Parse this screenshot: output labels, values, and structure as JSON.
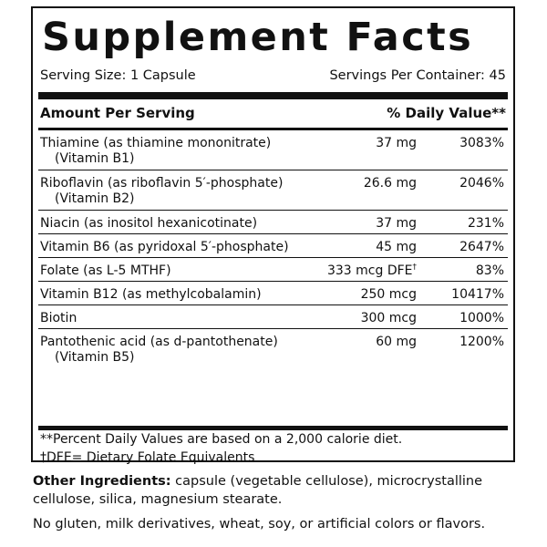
{
  "panel": {
    "title": "Supplement Facts",
    "serving_size": "Serving Size: 1 Capsule",
    "servings_per_container": "Servings Per Container: 45",
    "amount_header": "Amount Per Serving",
    "dv_header": "% Daily Value**"
  },
  "nutrients": [
    {
      "name": "Thiamine (as thiamine mononitrate)",
      "sub": "(Vitamin B1)",
      "amount": "37 mg",
      "dv": "3083%"
    },
    {
      "name": "Riboflavin (as riboflavin 5′-phosphate)",
      "sub": "(Vitamin B2)",
      "amount": "26.6 mg",
      "dv": "2046%"
    },
    {
      "name": "Niacin (as inositol hexanicotinate)",
      "sub": "",
      "amount": "37 mg",
      "dv": "231%"
    },
    {
      "name": "Vitamin B6 (as pyridoxal 5′-phosphate)",
      "sub": "",
      "amount": "45 mg",
      "dv": "2647%"
    },
    {
      "name": "Folate (as L-5 MTHF)",
      "sub": "",
      "amount": "333 mcg DFE",
      "amount_mark": "†",
      "dv": "83%"
    },
    {
      "name": "Vitamin B12 (as methylcobalamin)",
      "sub": "",
      "amount": "250 mcg",
      "dv": "10417%"
    },
    {
      "name": "Biotin",
      "sub": "",
      "amount": "300 mcg",
      "dv": "1000%"
    },
    {
      "name": "Pantothenic acid (as d-pantothenate)",
      "sub": "(Vitamin B5)",
      "amount": "60 mg",
      "dv": "1200%"
    }
  ],
  "footnotes": {
    "daily_values": "**Percent Daily Values are based on a 2,000 calorie diet.",
    "dfe": "†DFE= Dietary Folate Equivalents"
  },
  "other": {
    "ingredients_label": "Other Ingredients:",
    "ingredients_text": " capsule (vegetable cellulose), microcrystalline cellulose, silica, magnesium stearate.",
    "allergens": "No gluten, milk derivatives, wheat, soy, or artificial colors or flavors."
  },
  "colors": {
    "ink": "#111111",
    "background": "#ffffff"
  }
}
